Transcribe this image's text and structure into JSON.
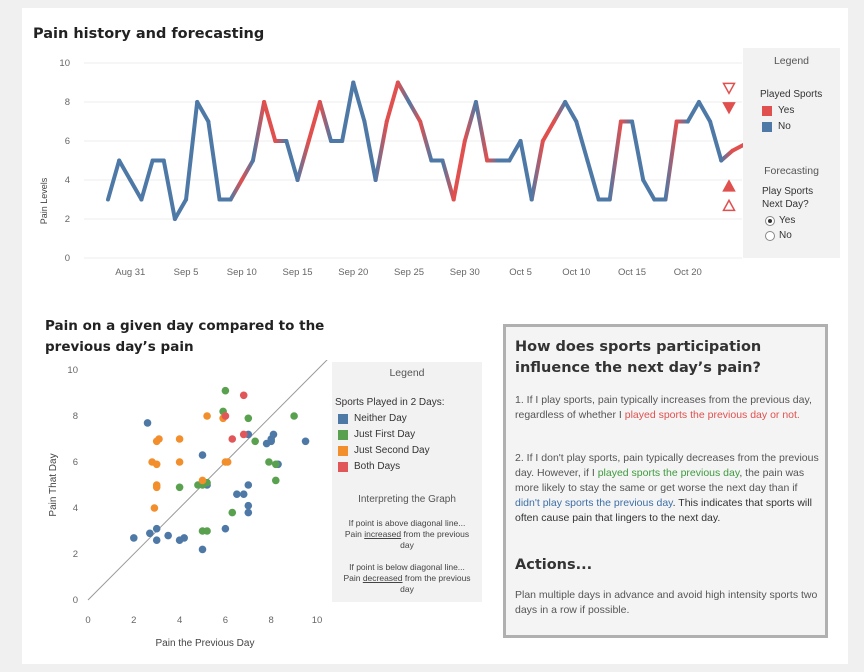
{
  "line_chart": {
    "title": "Pain history and forecasting",
    "ylabel": "Pain Levels",
    "y_ticks": [
      "0",
      "2",
      "4",
      "6",
      "8",
      "10"
    ],
    "x_ticks": [
      "Aug 31",
      "Sep 5",
      "Sep 10",
      "Sep 15",
      "Sep 20",
      "Sep 25",
      "Sep 30",
      "Oct 5",
      "Oct 10",
      "Oct 15",
      "Oct 20"
    ],
    "legend": {
      "header": "Legend",
      "subtitle": "Played Sports",
      "items": [
        {
          "label": "Yes",
          "color": "#e0504f"
        },
        {
          "label": "No",
          "color": "#4e79a7"
        }
      ]
    },
    "forecasting": {
      "header": "Forecasting",
      "question": "Play Sports Next Day?",
      "options": [
        "Yes",
        "No"
      ],
      "selected": "Yes"
    }
  },
  "scatter": {
    "title": "Pain on a given day compared to the previous day’s pain",
    "xlabel": "Pain the Previous Day",
    "ylabel": "Pain That Day",
    "x_ticks": [
      "0",
      "2",
      "4",
      "6",
      "8",
      "10"
    ],
    "y_ticks": [
      "0",
      "2",
      "4",
      "6",
      "8",
      "10"
    ],
    "legend": {
      "header": "Legend",
      "subtitle": "Sports Played in 2 Days:",
      "items": [
        {
          "label": "Neither Day",
          "color": "#4e79a7"
        },
        {
          "label": "Just First Day",
          "color": "#59a14f"
        },
        {
          "label": "Just Second Day",
          "color": "#f28e2b"
        },
        {
          "label": "Both Days",
          "color": "#e15759"
        }
      ]
    },
    "interpret": {
      "title": "Interpreting the Graph",
      "above_1": "If point is above diagonal line...",
      "above_2a": "Pain ",
      "above_2b": "increased",
      "above_2c": " from the previous",
      "above_3": "day",
      "below_1": "If point is below diagonal line...",
      "below_2a": "Pain ",
      "below_2b": "decreased",
      "below_2c": " from the previous",
      "below_3": "day"
    }
  },
  "insight": {
    "heading": "How does sports participation influence the next day’s pain?",
    "p1_bold": "1. If I play sports",
    "p1_a": ", pain typically increases from the previous day, regardless of whether I ",
    "p1_red": "played sports the previous day or not.",
    "p2_bold": "2. If I don't play sports",
    "p2_a": ", pain typically decreases from the previous day.  However, if I ",
    "p2_green": "played sports the previous day",
    "p2_b": ", the pain was more likely to stay the same or get worse the next day than if ",
    "p2_blue": "didn't play sports the previous day",
    "p2_c": ". This indicates that sports will often cause pain that lingers to the next day.",
    "actions_heading": "Actions...",
    "actions_text": "Plan multiple days in advance and avoid high intensity sports two days in a row if possible."
  },
  "chart_data": [
    {
      "type": "line",
      "title": "Pain history and forecasting",
      "xlabel": "",
      "ylabel": "Pain Levels",
      "ylim": [
        0,
        10
      ],
      "x_start": "Aug 29",
      "x": [
        "Aug 29",
        "Aug 30",
        "Aug 31",
        "Sep 1",
        "Sep 2",
        "Sep 3",
        "Sep 4",
        "Sep 5",
        "Sep 6",
        "Sep 7",
        "Sep 8",
        "Sep 9",
        "Sep 10",
        "Sep 11",
        "Sep 12",
        "Sep 13",
        "Sep 14",
        "Sep 15",
        "Sep 16",
        "Sep 17",
        "Sep 18",
        "Sep 19",
        "Sep 20",
        "Sep 21",
        "Sep 22",
        "Sep 23",
        "Sep 24",
        "Sep 25",
        "Sep 26",
        "Sep 27",
        "Sep 28",
        "Sep 29",
        "Sep 30",
        "Oct 1",
        "Oct 2",
        "Oct 3",
        "Oct 4",
        "Oct 5",
        "Oct 6",
        "Oct 7",
        "Oct 8",
        "Oct 9",
        "Oct 10",
        "Oct 11",
        "Oct 12",
        "Oct 13",
        "Oct 14",
        "Oct 15",
        "Oct 16",
        "Oct 17",
        "Oct 18",
        "Oct 19",
        "Oct 20",
        "Oct 21",
        "Oct 22",
        "Oct 23",
        "Oct 24",
        "Oct 25"
      ],
      "values": [
        3,
        5,
        4,
        3,
        5,
        5,
        2,
        3,
        8,
        7,
        3,
        3,
        4,
        5,
        8,
        6,
        6,
        4,
        6,
        8,
        6,
        6,
        9,
        7,
        4,
        7,
        9,
        8,
        7,
        5,
        5,
        3,
        6,
        8,
        5,
        5,
        5,
        6,
        3,
        6,
        7,
        8,
        7,
        5,
        3,
        3,
        7,
        7,
        4,
        3,
        3,
        7,
        7,
        8,
        7,
        5,
        5.5,
        5.8
      ],
      "played_sports": [
        "No",
        "No",
        "No",
        "No",
        "No",
        "No",
        "No",
        "No",
        "No",
        "No",
        "No",
        "No",
        "Yes",
        "No",
        "Yes",
        "Yes",
        "No",
        "No",
        "Yes",
        "Yes",
        "No",
        "No",
        "No",
        "No",
        "No",
        "Yes",
        "Yes",
        "No",
        "Yes",
        "No",
        "No",
        "Yes",
        "Yes",
        "No",
        "Yes",
        "No",
        "No",
        "No",
        "No",
        "Yes",
        "Yes",
        "No",
        "No",
        "No",
        "No",
        "No",
        "Yes",
        "No",
        "No",
        "No",
        "No",
        "Yes",
        "No",
        "No",
        "No",
        "No",
        "Yes",
        "Yes"
      ],
      "series": [
        {
          "name": "Yes",
          "color": "#e0504f"
        },
        {
          "name": "No",
          "color": "#4e79a7"
        }
      ],
      "forecast_markers": [
        {
          "value": 8.7,
          "shape": "triangle-down-outline"
        },
        {
          "value": 7.7,
          "shape": "triangle-down"
        },
        {
          "value": 3.7,
          "shape": "triangle-up"
        },
        {
          "value": 2.7,
          "shape": "triangle-up-outline"
        }
      ]
    },
    {
      "type": "scatter",
      "title": "Pain on a given day compared to the previous day’s pain",
      "xlabel": "Pain the Previous Day",
      "ylabel": "Pain That Day",
      "xlim": [
        0,
        10
      ],
      "ylim": [
        0,
        10
      ],
      "diagonal": true,
      "series": [
        {
          "name": "Neither Day",
          "color": "#4e79a7",
          "points": [
            [
              2,
              2.7
            ],
            [
              2.7,
              2.9
            ],
            [
              3,
              3.1
            ],
            [
              3,
              2.6
            ],
            [
              3.5,
              2.8
            ],
            [
              4,
              2.6
            ],
            [
              4.2,
              2.7
            ],
            [
              5,
              2.2
            ],
            [
              5,
              6.3
            ],
            [
              2.6,
              7.7
            ],
            [
              6,
              3.1
            ],
            [
              7,
              3.8
            ],
            [
              7,
              4.1
            ],
            [
              7,
              5
            ],
            [
              6.8,
              4.6
            ],
            [
              8,
              7
            ],
            [
              8,
              6.9
            ],
            [
              8.1,
              7.2
            ],
            [
              8.3,
              5.9
            ],
            [
              9.5,
              6.9
            ],
            [
              7.8,
              6.8
            ],
            [
              7,
              7.2
            ],
            [
              6.5,
              4.6
            ],
            [
              5.2,
              5
            ]
          ]
        },
        {
          "name": "Just First Day",
          "color": "#59a14f",
          "points": [
            [
              4,
              4.9
            ],
            [
              5,
              3
            ],
            [
              5.2,
              3
            ],
            [
              4.8,
              5
            ],
            [
              5,
              5
            ],
            [
              5.2,
              5.1
            ],
            [
              6.3,
              3.8
            ],
            [
              6,
              9.1
            ],
            [
              7,
              7.9
            ],
            [
              7.9,
              6
            ],
            [
              8.2,
              5.9
            ],
            [
              8.2,
              5.2
            ],
            [
              9,
              8
            ],
            [
              5.9,
              8.2
            ],
            [
              7.3,
              6.9
            ]
          ]
        },
        {
          "name": "Just Second Day",
          "color": "#f28e2b",
          "points": [
            [
              2.8,
              6
            ],
            [
              3,
              5.9
            ],
            [
              3,
              5
            ],
            [
              3,
              4.9
            ],
            [
              2.9,
              4
            ],
            [
              3.1,
              7
            ],
            [
              3,
              6.9
            ],
            [
              4,
              7
            ],
            [
              4,
              6
            ],
            [
              5,
              5.2
            ],
            [
              5.2,
              8
            ],
            [
              6,
              6
            ],
            [
              6.1,
              6
            ],
            [
              6,
              8
            ],
            [
              5.9,
              7.9
            ]
          ]
        },
        {
          "name": "Both Days",
          "color": "#e15759",
          "points": [
            [
              6.8,
              8.9
            ],
            [
              6.8,
              7.2
            ],
            [
              6.3,
              7
            ],
            [
              6,
              8
            ]
          ]
        }
      ]
    }
  ]
}
